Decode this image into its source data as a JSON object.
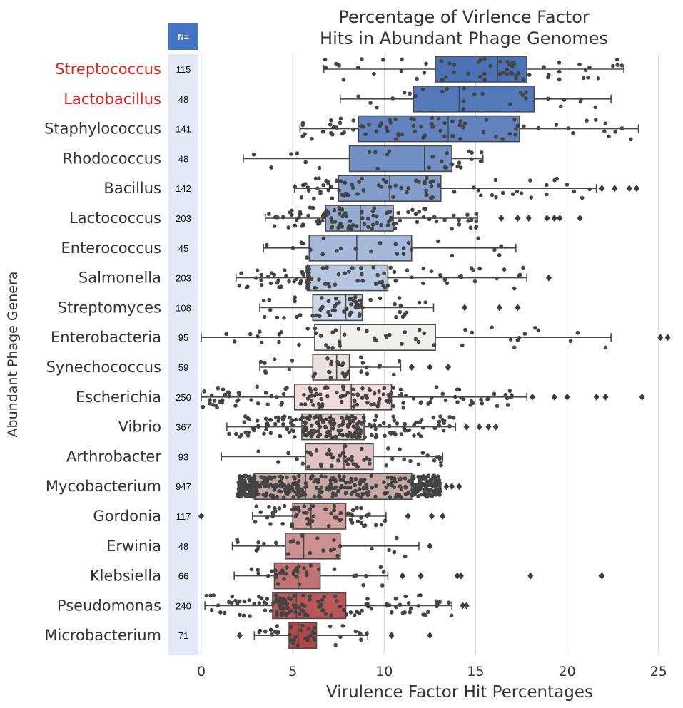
{
  "chart_data": {
    "type": "box",
    "title_lines": [
      "Percentage of Virlence Factor",
      "Hits in Abundant Phage Genomes"
    ],
    "xlabel": "Virulence Factor Hit Percentages",
    "ylabel": "Abundant Phage Genera",
    "n_header": "N=",
    "xlim": [
      0,
      25.5
    ],
    "xticks": [
      0,
      5,
      10,
      15,
      20,
      25
    ],
    "grid": "vertical",
    "highlight_color": "#e8231f",
    "label_color": "#333333",
    "n_box_color": "#e4e8f4",
    "n_header_color": "#4472c4",
    "point_color": "#444444",
    "categories": [
      {
        "genus": "Streptococcus",
        "n": "115",
        "highlight": true,
        "color": "#4a72b4",
        "q1": 12.8,
        "median": 16.2,
        "q3": 17.8,
        "wlo": 6.7,
        "whi": 23.1,
        "outliers": []
      },
      {
        "genus": "Lactobacillus",
        "n": "48",
        "highlight": true,
        "color": "#5479b8",
        "q1": 11.6,
        "median": 14.1,
        "q3": 18.2,
        "wlo": 7.6,
        "whi": 22.4,
        "outliers": []
      },
      {
        "genus": "Staphylococcus",
        "n": "141",
        "highlight": false,
        "color": "#6283bf",
        "q1": 8.6,
        "median": 13.5,
        "q3": 17.4,
        "wlo": 5.4,
        "whi": 23.9,
        "outliers": []
      },
      {
        "genus": "Rhodococcus",
        "n": "48",
        "highlight": false,
        "color": "#7290c5",
        "q1": 8.1,
        "median": 12.2,
        "q3": 13.7,
        "wlo": 2.3,
        "whi": 15.4,
        "outliers": []
      },
      {
        "genus": "Bacillus",
        "n": "142",
        "highlight": false,
        "color": "#839dcc",
        "q1": 7.5,
        "median": 10.3,
        "q3": 13.1,
        "wlo": 5.1,
        "whi": 21.6,
        "outliers": [
          21.9,
          22.6,
          23.4,
          23.8
        ]
      },
      {
        "genus": "Lactococcus",
        "n": "203",
        "highlight": false,
        "color": "#94abd3",
        "q1": 6.8,
        "median": 8.7,
        "q3": 10.5,
        "wlo": 3.5,
        "whi": 15.1,
        "outliers": [
          16.4,
          17.3,
          17.9,
          18.9,
          19.3,
          19.6,
          20.7
        ]
      },
      {
        "genus": "Enterococcus",
        "n": "45",
        "highlight": false,
        "color": "#a6b9da",
        "q1": 5.9,
        "median": 8.5,
        "q3": 11.5,
        "wlo": 3.4,
        "whi": 17.2,
        "outliers": []
      },
      {
        "genus": "Salmonella",
        "n": "203",
        "highlight": false,
        "color": "#b8c7e1",
        "q1": 5.8,
        "median": 5.9,
        "q3": 10.2,
        "wlo": 1.9,
        "whi": 17.8,
        "outliers": [
          19.0
        ]
      },
      {
        "genus": "Streptomyces",
        "n": "108",
        "highlight": false,
        "color": "#cbd6e9",
        "q1": 6.1,
        "median": 7.9,
        "q3": 8.8,
        "wlo": 3.2,
        "whi": 12.7,
        "outliers": [
          14.4,
          16.3,
          17.3
        ]
      },
      {
        "genus": "Enterobacteria",
        "n": "95",
        "highlight": false,
        "color": "#f2efef",
        "q1": 6.2,
        "median": 7.6,
        "q3": 12.8,
        "wlo": 0.0,
        "whi": 22.4,
        "outliers": [
          25.1,
          25.5
        ]
      },
      {
        "genus": "Synechococcus",
        "n": "59",
        "highlight": false,
        "color": "#ebe0e0",
        "q1": 6.1,
        "median": 7.4,
        "q3": 8.1,
        "wlo": 3.2,
        "whi": 10.9,
        "outliers": [
          11.5,
          12.5,
          13.5
        ]
      },
      {
        "genus": "Escherichia",
        "n": "250",
        "highlight": false,
        "color": "#f0dcdc",
        "q1": 5.1,
        "median": 8.2,
        "q3": 10.4,
        "wlo": 0.0,
        "whi": 17.8,
        "outliers": [
          18.1,
          19.3,
          20.0,
          21.6,
          22.1,
          24.1
        ]
      },
      {
        "genus": "Vibrio",
        "n": "367",
        "highlight": false,
        "color": "#e8cfcf",
        "q1": 5.5,
        "median": 7.1,
        "q3": 8.9,
        "wlo": 1.4,
        "whi": 13.9,
        "outliers": [
          14.5,
          15.2,
          15.7,
          16.1
        ]
      },
      {
        "genus": "Arthrobacter",
        "n": "93",
        "highlight": false,
        "color": "#e2c2c2",
        "q1": 5.7,
        "median": 7.8,
        "q3": 9.4,
        "wlo": 1.1,
        "whi": 13.2,
        "outliers": []
      },
      {
        "genus": "Mycobacterium",
        "n": "947",
        "highlight": false,
        "color": "#c8a7a7",
        "q1": 2.9,
        "median": 5.7,
        "q3": 11.5,
        "wlo": 2.0,
        "whi": 13.1,
        "outliers": [
          13.4,
          13.7,
          14.1
        ]
      },
      {
        "genus": "Gordonia",
        "n": "117",
        "highlight": false,
        "color": "#d49f9f",
        "q1": 5.0,
        "median": 6.0,
        "q3": 7.9,
        "wlo": 2.8,
        "whi": 10.1,
        "outliers": [
          0.0,
          11.3,
          12.6,
          13.2
        ]
      },
      {
        "genus": "Erwinia",
        "n": "48",
        "highlight": false,
        "color": "#cd9191",
        "q1": 4.6,
        "median": 5.6,
        "q3": 7.6,
        "wlo": 1.7,
        "whi": 11.9,
        "outliers": [
          12.5
        ]
      },
      {
        "genus": "Klebsiella",
        "n": "66",
        "highlight": false,
        "color": "#c27272",
        "q1": 4.0,
        "median": 5.3,
        "q3": 6.5,
        "wlo": 1.8,
        "whi": 10.2,
        "outliers": [
          11.0,
          12.0,
          14.0,
          14.2,
          18.0,
          21.9
        ]
      },
      {
        "genus": "Pseudomonas",
        "n": "240",
        "highlight": false,
        "color": "#b95858",
        "q1": 3.9,
        "median": 5.2,
        "q3": 7.9,
        "wlo": 0.2,
        "whi": 13.7,
        "outliers": [
          14.3,
          14.5
        ]
      },
      {
        "genus": "Microbacterium",
        "n": "71",
        "highlight": false,
        "color": "#b44747",
        "q1": 4.8,
        "median": 5.3,
        "q3": 6.3,
        "wlo": 2.9,
        "whi": 9.1,
        "outliers": [
          2.1,
          10.4,
          12.5
        ]
      }
    ]
  }
}
